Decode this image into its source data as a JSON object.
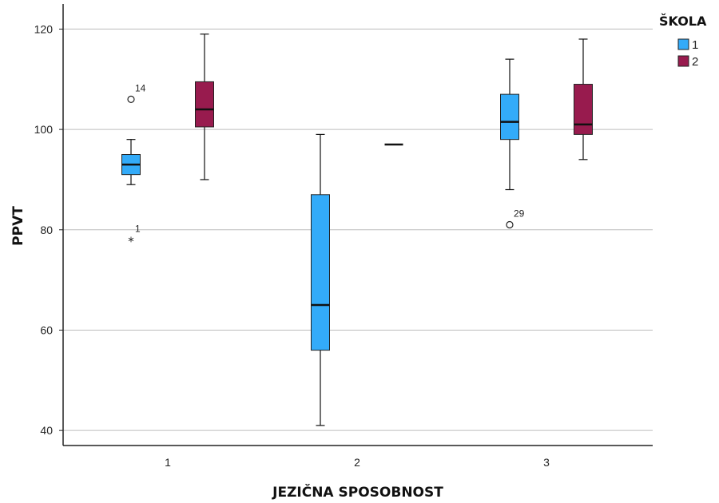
{
  "chart_data": {
    "type": "boxplot",
    "xlabel": "JEZIČNA SPOSOBNOST",
    "ylabel": "PPVT",
    "ylim": [
      37,
      125
    ],
    "yticks": [
      40,
      60,
      80,
      100,
      120
    ],
    "grid": true,
    "categories": [
      "1",
      "2",
      "3"
    ],
    "legend": {
      "title": "ŠKOLA",
      "placement": "right",
      "entries": [
        {
          "label": "1",
          "color": "#33abf9"
        },
        {
          "label": "2",
          "color": "#981b4e"
        }
      ]
    },
    "series": [
      {
        "name": "1",
        "color": "#33abf9",
        "boxes": [
          {
            "category": "1",
            "min": 89,
            "q1": 91,
            "median": 93,
            "q3": 95,
            "max": 98,
            "outliers": [
              {
                "value": 106,
                "label": "14",
                "marker": "circle"
              },
              {
                "value": 78,
                "label": "1",
                "marker": "star"
              }
            ]
          },
          {
            "category": "2",
            "min": 41,
            "q1": 56,
            "median": 65,
            "q3": 87,
            "max": 99,
            "outliers": []
          },
          {
            "category": "3",
            "min": 88,
            "q1": 98,
            "median": 101.5,
            "q3": 107,
            "max": 114,
            "outliers": [
              {
                "value": 81,
                "label": "29",
                "marker": "circle"
              }
            ]
          }
        ]
      },
      {
        "name": "2",
        "color": "#981b4e",
        "boxes": [
          {
            "category": "1",
            "min": 90,
            "q1": 100.5,
            "median": 104,
            "q3": 109.5,
            "max": 119,
            "outliers": []
          },
          {
            "category": "2",
            "min": 97,
            "q1": 97,
            "median": 97,
            "q3": 97,
            "max": 97,
            "outliers": []
          },
          {
            "category": "3",
            "min": 94,
            "q1": 99,
            "median": 101,
            "q3": 109,
            "max": 118,
            "outliers": []
          }
        ]
      }
    ]
  }
}
